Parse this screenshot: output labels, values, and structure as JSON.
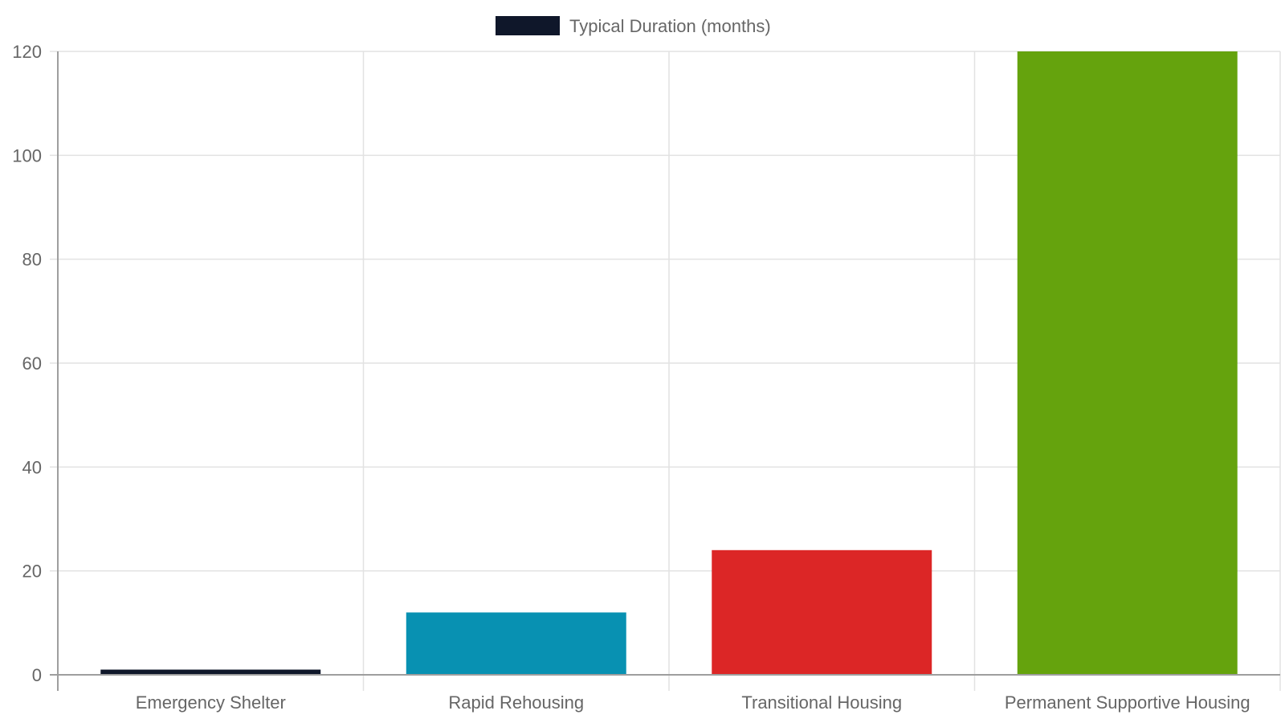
{
  "chart_data": {
    "type": "bar",
    "categories": [
      "Emergency Shelter",
      "Rapid Rehousing",
      "Transitional Housing",
      "Permanent Supportive Housing"
    ],
    "series": [
      {
        "name": "Typical Duration (months)",
        "values": [
          1,
          12,
          24,
          120
        ],
        "colors": [
          "#0f172a",
          "#0891b2",
          "#dc2626",
          "#65a30d"
        ]
      }
    ],
    "ylim": [
      0,
      120
    ],
    "yticks": [
      0,
      20,
      40,
      60,
      80,
      100,
      120
    ],
    "grid": true,
    "legend": "top-center",
    "colors": {
      "grid": "#e2e2e2",
      "axis": "#9e9e9e",
      "text": "#666666",
      "legend_swatch": "#0f172a"
    }
  }
}
